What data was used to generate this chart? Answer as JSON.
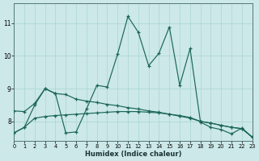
{
  "xlabel": "Humidex (Indice chaleur)",
  "bg_color": "#cce8e8",
  "line_color": "#1a6655",
  "grid_color": "#aad4d4",
  "xlim": [
    0,
    23
  ],
  "ylim": [
    7.4,
    11.6
  ],
  "xtick_vals": [
    0,
    1,
    2,
    3,
    4,
    5,
    6,
    7,
    8,
    9,
    10,
    11,
    12,
    13,
    14,
    15,
    16,
    17,
    18,
    19,
    20,
    21,
    22,
    23
  ],
  "ytick_vals": [
    8,
    9,
    10,
    11
  ],
  "line1_x": [
    0,
    1,
    2,
    3,
    4,
    5,
    6,
    7,
    8,
    9,
    10,
    11,
    12,
    13,
    14,
    15,
    16,
    17,
    18,
    19,
    20,
    21,
    22,
    23
  ],
  "line1_y": [
    7.65,
    7.82,
    8.5,
    9.0,
    8.85,
    7.65,
    7.68,
    8.38,
    9.1,
    9.05,
    10.05,
    11.2,
    10.72,
    9.7,
    10.08,
    10.88,
    9.1,
    10.22,
    7.98,
    7.82,
    7.75,
    7.62,
    7.8,
    7.52
  ],
  "line2_x": [
    0,
    1,
    2,
    3,
    4,
    5,
    6,
    7,
    8,
    9,
    10,
    11,
    12,
    13,
    14,
    15,
    16,
    17,
    18,
    19,
    20,
    21,
    22,
    23
  ],
  "line2_y": [
    8.32,
    8.3,
    8.55,
    9.0,
    8.85,
    8.82,
    8.68,
    8.62,
    8.58,
    8.52,
    8.48,
    8.42,
    8.38,
    8.32,
    8.28,
    8.22,
    8.16,
    8.1,
    8.0,
    7.95,
    7.88,
    7.82,
    7.78,
    7.52
  ],
  "line3_x": [
    0,
    1,
    2,
    3,
    4,
    5,
    6,
    7,
    8,
    9,
    10,
    11,
    12,
    13,
    14,
    15,
    16,
    17,
    18,
    19,
    20,
    21,
    22,
    23
  ],
  "line3_y": [
    7.65,
    7.82,
    8.1,
    8.15,
    8.18,
    8.2,
    8.22,
    8.24,
    8.26,
    8.28,
    8.3,
    8.3,
    8.3,
    8.28,
    8.26,
    8.22,
    8.18,
    8.12,
    8.0,
    7.95,
    7.88,
    7.82,
    7.78,
    7.52
  ]
}
